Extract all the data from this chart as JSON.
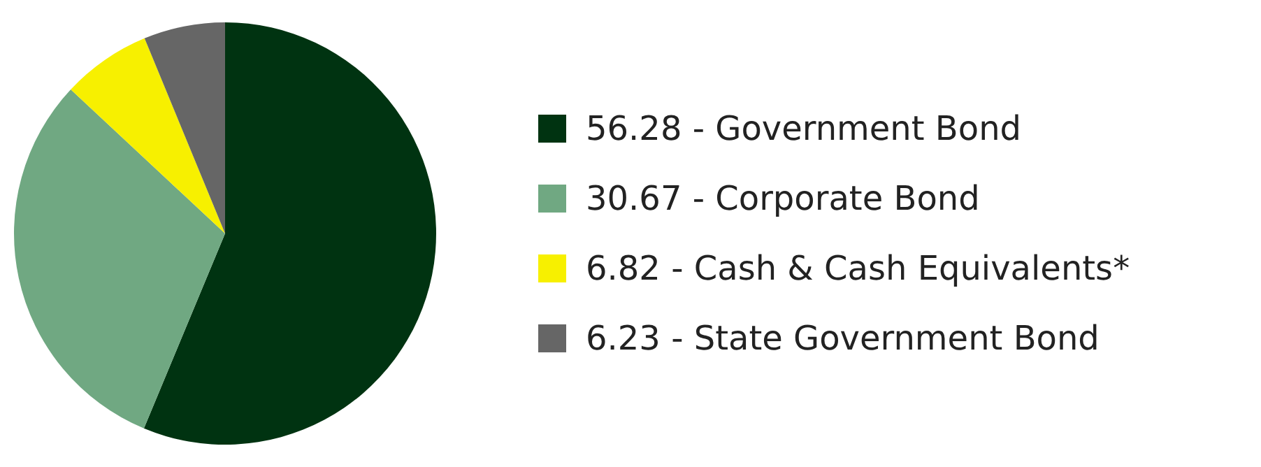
{
  "chart_data": {
    "type": "pie",
    "categories": [
      "56.28 - Government Bond",
      "30.67 - Corporate Bond",
      "6.82 - Cash & Cash Equivalents*",
      "6.23 - State Government Bond"
    ],
    "values": [
      56.28,
      30.67,
      6.82,
      6.23
    ],
    "colors": [
      "#003311",
      "#70a882",
      "#f7f000",
      "#666666"
    ],
    "legend": "right"
  }
}
